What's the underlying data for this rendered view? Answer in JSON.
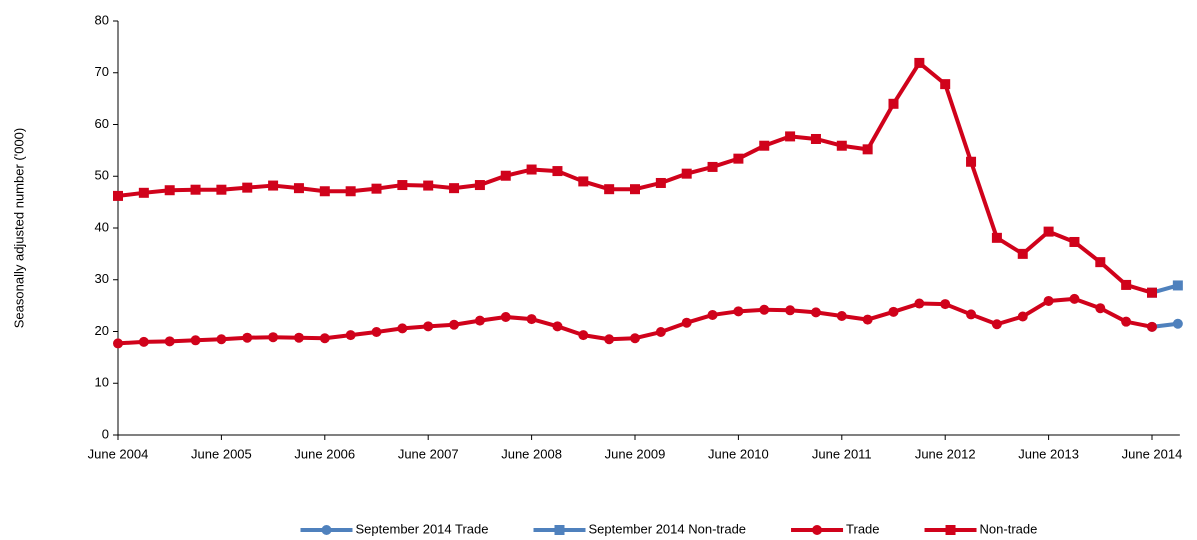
{
  "chart_data": {
    "type": "line",
    "y_label": "Seasonally adjusted number ('000)",
    "categories": [
      "June 2004",
      null,
      null,
      null,
      "June 2005",
      null,
      null,
      null,
      "June 2006",
      null,
      null,
      null,
      "June 2007",
      null,
      null,
      null,
      "June 2008",
      null,
      null,
      null,
      "June 2009",
      null,
      null,
      null,
      "June 2010",
      null,
      null,
      null,
      "June 2011",
      null,
      null,
      null,
      "June 2012",
      null,
      null,
      null,
      "June 2013",
      null,
      null,
      null,
      "June 2014",
      null
    ],
    "series": [
      {
        "name": "September 2014 Trade",
        "color": "#4f81bd",
        "marker": "circle",
        "values": [
          null,
          null,
          null,
          null,
          null,
          null,
          null,
          null,
          null,
          null,
          null,
          null,
          null,
          null,
          null,
          null,
          null,
          null,
          null,
          null,
          null,
          null,
          null,
          null,
          null,
          null,
          null,
          null,
          null,
          null,
          null,
          null,
          null,
          null,
          null,
          null,
          null,
          null,
          null,
          null,
          20.9,
          21.5
        ]
      },
      {
        "name": "September 2014 Non-trade",
        "color": "#4f81bd",
        "marker": "square",
        "values": [
          null,
          null,
          null,
          null,
          null,
          null,
          null,
          null,
          null,
          null,
          null,
          null,
          null,
          null,
          null,
          null,
          null,
          null,
          null,
          null,
          null,
          null,
          null,
          null,
          null,
          null,
          null,
          null,
          null,
          null,
          null,
          null,
          null,
          null,
          null,
          null,
          null,
          null,
          null,
          null,
          27.5,
          28.9
        ]
      },
      {
        "name": "Trade",
        "color": "#d0021b",
        "marker": "circle",
        "values": [
          17.7,
          18.0,
          18.1,
          18.3,
          18.5,
          18.8,
          18.9,
          18.8,
          18.7,
          19.3,
          19.9,
          20.6,
          21.0,
          21.3,
          22.1,
          22.8,
          22.4,
          21.0,
          19.3,
          18.5,
          18.7,
          19.9,
          21.7,
          23.2,
          23.9,
          24.2,
          24.1,
          23.7,
          23.0,
          22.3,
          23.8,
          25.4,
          25.3,
          23.3,
          21.4,
          22.9,
          25.9,
          26.3,
          24.5,
          21.9,
          20.9,
          null
        ]
      },
      {
        "name": "Non-trade",
        "color": "#d0021b",
        "marker": "square",
        "values": [
          46.2,
          46.8,
          47.3,
          47.4,
          47.4,
          47.8,
          48.2,
          47.7,
          47.1,
          47.1,
          47.6,
          48.3,
          48.2,
          47.7,
          48.3,
          50.1,
          51.3,
          51.0,
          49.0,
          47.5,
          47.5,
          48.7,
          50.5,
          51.8,
          53.4,
          55.9,
          57.7,
          57.2,
          55.9,
          55.2,
          64.0,
          71.9,
          67.8,
          52.8,
          38.1,
          35.0,
          39.3,
          37.3,
          33.4,
          29.0,
          27.5,
          null
        ]
      }
    ],
    "ylim": [
      0,
      80
    ],
    "yticks": [
      0,
      10,
      20,
      30,
      40,
      50,
      60,
      70,
      80
    ],
    "grid": false,
    "legend": "bottom"
  }
}
